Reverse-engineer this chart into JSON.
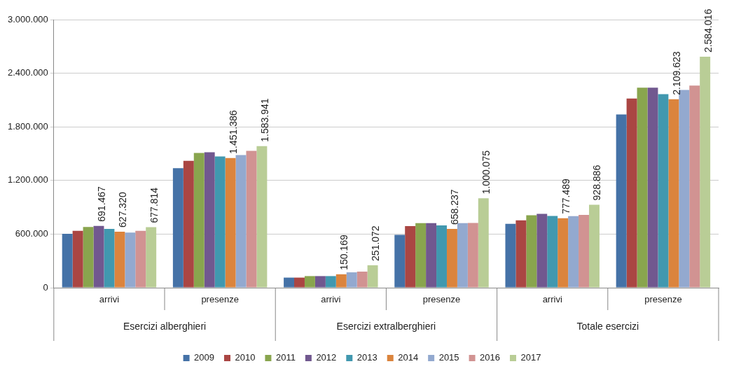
{
  "chart_data": {
    "type": "bar",
    "categories": [
      "arrivi",
      "presenze",
      "arrivi",
      "presenze",
      "arrivi",
      "presenze"
    ],
    "annotations": [
      "Esercizi alberghieri",
      "Esercizi extralberghieri",
      "Totale esercizi"
    ],
    "series": [
      {
        "name": "2009",
        "color": "#4572a7",
        "values": [
          604000,
          1338000,
          113000,
          592000,
          714000,
          1938000
        ]
      },
      {
        "name": "2010",
        "color": "#aa4643",
        "values": [
          636000,
          1419000,
          113000,
          689000,
          754000,
          2116000
        ]
      },
      {
        "name": "2011",
        "color": "#89a54e",
        "values": [
          680000,
          1508000,
          130000,
          722000,
          811000,
          2238000
        ]
      },
      {
        "name": "2012",
        "color": "#71588f",
        "values": [
          691467,
          1516000,
          130000,
          722000,
          827000,
          2238000
        ],
        "value_labels": [
          "691.467",
          null,
          null,
          null,
          null,
          null
        ]
      },
      {
        "name": "2013",
        "color": "#4198af",
        "values": [
          657000,
          1468000,
          130000,
          697000,
          803000,
          2165000
        ]
      },
      {
        "name": "2014",
        "color": "#db843d",
        "values": [
          627320,
          1451386,
          150169,
          658237,
          777489,
          2109623
        ],
        "value_labels": [
          "627.320",
          "1.451.386",
          "150.169",
          "658.237",
          "777.489",
          "2.109.623"
        ]
      },
      {
        "name": "2015",
        "color": "#93a9cf",
        "values": [
          616000,
          1484000,
          172000,
          722000,
          800000,
          2213000
        ]
      },
      {
        "name": "2016",
        "color": "#d19392",
        "values": [
          636000,
          1532000,
          180000,
          725000,
          815000,
          2262000
        ]
      },
      {
        "name": "2017",
        "color": "#b9cd96",
        "values": [
          677814,
          1583941,
          251072,
          1000075,
          928886,
          2584016
        ],
        "value_labels": [
          "677.814",
          "1.583.941",
          "251.072",
          "1.000.075",
          "928.886",
          "2.584.016"
        ]
      }
    ],
    "ylim": [
      0,
      3000000
    ],
    "yticks": [
      0,
      {
        "value": 600000,
        "label": "600.000"
      },
      {
        "value": 1200000,
        "label": "1.200.000"
      },
      {
        "value": 1800000,
        "label": "1.800.000"
      },
      {
        "value": 2400000,
        "label": "2.400.000"
      },
      {
        "value": 3000000,
        "label": "3.000.000"
      }
    ],
    "grid": "y",
    "legend": "bottom"
  }
}
